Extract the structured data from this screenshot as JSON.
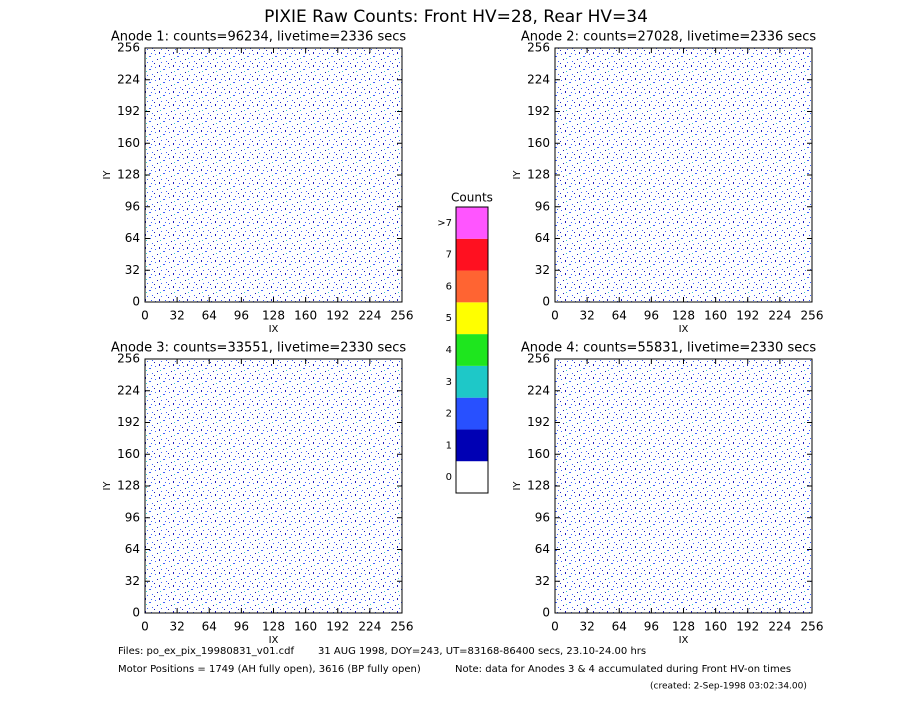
{
  "title": "PIXIE Raw Counts:  Front HV=28, Rear HV=34",
  "panels": [
    {
      "title": "Anode 1: counts=96234, livetime=2336 secs",
      "xlabel": "IX",
      "ylabel": "IY",
      "xlim": [
        0,
        256
      ],
      "ylim": [
        0,
        256
      ],
      "xticks": [
        0,
        32,
        64,
        96,
        128,
        160,
        192,
        224,
        256
      ],
      "yticks": [
        0,
        32,
        64,
        96,
        128,
        160,
        192,
        224,
        256
      ]
    },
    {
      "title": "Anode 2: counts=27028, livetime=2336 secs",
      "xlabel": "IX",
      "ylabel": "IY",
      "xlim": [
        0,
        256
      ],
      "ylim": [
        0,
        256
      ],
      "xticks": [
        0,
        32,
        64,
        96,
        128,
        160,
        192,
        224,
        256
      ],
      "yticks": [
        0,
        32,
        64,
        96,
        128,
        160,
        192,
        224,
        256
      ]
    },
    {
      "title": "Anode 3: counts=33551, livetime=2330 secs",
      "xlabel": "IX",
      "ylabel": "IY",
      "xlim": [
        0,
        256
      ],
      "ylim": [
        0,
        256
      ],
      "xticks": [
        0,
        32,
        64,
        96,
        128,
        160,
        192,
        224,
        256
      ],
      "yticks": [
        0,
        32,
        64,
        96,
        128,
        160,
        192,
        224,
        256
      ]
    },
    {
      "title": "Anode 4: counts=55831, livetime=2330 secs",
      "xlabel": "IX",
      "ylabel": "IY",
      "xlim": [
        0,
        256
      ],
      "ylim": [
        0,
        256
      ],
      "xticks": [
        0,
        32,
        64,
        96,
        128,
        160,
        192,
        224,
        256
      ],
      "yticks": [
        0,
        32,
        64,
        96,
        128,
        160,
        192,
        224,
        256
      ]
    }
  ],
  "colorbar": {
    "title": "Counts",
    "levels": [
      {
        "label": 0,
        "color": "#ffffff"
      },
      {
        "label": 1,
        "color": "#0000b4"
      },
      {
        "label": 2,
        "color": "#2850ff"
      },
      {
        "label": 3,
        "color": "#1ec8c8"
      },
      {
        "label": 4,
        "color": "#1ee61e"
      },
      {
        "label": 5,
        "color": "#ffff00"
      },
      {
        "label": 6,
        "color": "#ff6432"
      },
      {
        "label": 7,
        "color": "#ff1020"
      },
      {
        "label": ">7",
        "color": "#ff55ff"
      }
    ]
  },
  "footer": {
    "files": "Files: po_ex_pix_19980831_v01.cdf",
    "date": "31 AUG 1998, DOY=243, UT=83168-86400 secs, 23.10-24.00 hrs",
    "motor": "Motor Positions = 1749 (AH fully open), 3616 (BP fully open)",
    "note": "Note: data for Anodes 3 & 4 accumulated during Front HV-on times",
    "created": "(created:  2-Sep-1998 03:02:34.00)"
  }
}
